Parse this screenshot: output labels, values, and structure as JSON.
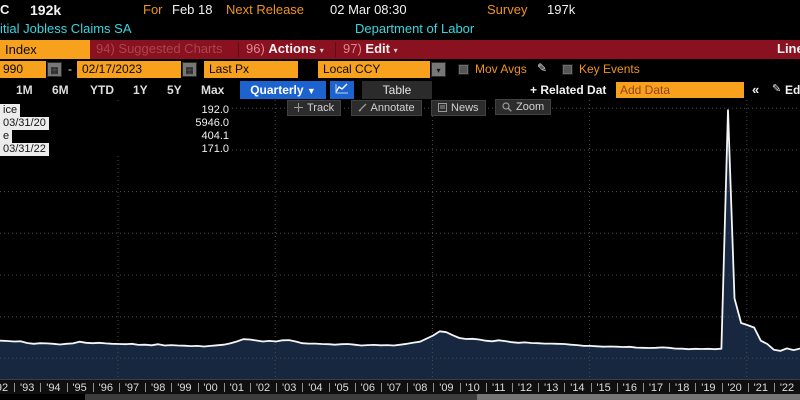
{
  "header": {
    "ticker_fragment": "C",
    "last_value": "192k",
    "for_label": "For",
    "for_date": "Feb 18",
    "next_release_label": "Next Release",
    "next_release_value": "02 Mar 08:30",
    "survey_label": "Survey",
    "survey_value": "197k",
    "security_name": "itial Jobless Claims SA",
    "source": "Department of Labor"
  },
  "menubar": {
    "index_tab": "Index",
    "suggested_charts": "94) Suggested Charts",
    "actions_num": "96)",
    "actions_label": "Actions",
    "edit_num": "97)",
    "edit_label": "Edit",
    "right_fragment": "Line"
  },
  "controls": {
    "date_from": "990",
    "dash": "-",
    "date_to": "02/17/2023",
    "px_type": "Last Px",
    "currency": "Local CCY",
    "mov_avgs": "Mov Avgs",
    "key_events": "Key Events"
  },
  "periodbar": {
    "ranges": [
      "1M",
      "6M",
      "YTD",
      "1Y",
      "5Y",
      "Max"
    ],
    "frequency": "Quarterly",
    "table": "Table",
    "related_label": "+ Related Dat",
    "add_data_placeholder": "Add Data",
    "collapse": "«",
    "edit": "Edit"
  },
  "chart_toolbar": {
    "track": "Track",
    "annotate": "Annotate",
    "news": "News",
    "zoom": "Zoom"
  },
  "legend": {
    "rows": [
      {
        "label": "ice",
        "value": "192.0"
      },
      {
        "label": "03/31/20",
        "value": "5946.0"
      },
      {
        "label": "e",
        "value": "404.1"
      },
      {
        "label": "03/31/22",
        "value": "171.0"
      }
    ]
  },
  "chart_data": {
    "type": "area",
    "title": "Initial Jobless Claims SA",
    "source": "Department of Labor",
    "frequency": "quarterly",
    "x_start": "1992-Q1",
    "x_end": "2023-Q1",
    "ylim": [
      0,
      6300
    ],
    "grid": "dotted",
    "stats": {
      "last": 192.0,
      "high": 5946.0,
      "high_date": "03/31/20",
      "average": 404.1,
      "low": 171.0,
      "low_date": "03/31/22"
    },
    "xticks": [
      "'92",
      "'93",
      "'94",
      "'95",
      "'96",
      "'97",
      "'98",
      "'99",
      "'00",
      "'01",
      "'02",
      "'03",
      "'04",
      "'05",
      "'06",
      "'07",
      "'08",
      "'09",
      "'10",
      "'11",
      "'12",
      "'13",
      "'14",
      "'15",
      "'16",
      "'17",
      "'18",
      "'19",
      "'20",
      "'21",
      "'22"
    ],
    "values": [
      430,
      415,
      408,
      395,
      400,
      360,
      340,
      355,
      350,
      340,
      325,
      340,
      350,
      390,
      365,
      355,
      365,
      350,
      340,
      335,
      330,
      340,
      315,
      320,
      305,
      330,
      300,
      310,
      300,
      295,
      285,
      290,
      275,
      290,
      305,
      320,
      350,
      395,
      450,
      445,
      420,
      395,
      410,
      395,
      425,
      430,
      395,
      355,
      345,
      345,
      335,
      330,
      320,
      330,
      335,
      320,
      300,
      310,
      315,
      305,
      310,
      300,
      320,
      340,
      370,
      390,
      465,
      540,
      640,
      620,
      545,
      480,
      455,
      460,
      445,
      415,
      400,
      425,
      405,
      380,
      365,
      375,
      360,
      355,
      345,
      345,
      340,
      335,
      320,
      310,
      290,
      290,
      280,
      270,
      275,
      270,
      265,
      268,
      250,
      245,
      240,
      245,
      255,
      245,
      225,
      222,
      210,
      220,
      215,
      220,
      212,
      222,
      5946,
      1430,
      840,
      790,
      729,
      415,
      335,
      200,
      171,
      231,
      190,
      225,
      192
    ]
  },
  "colors": {
    "accent_orange": "#f7a11d",
    "amber_text": "#f0941d",
    "cyan_text": "#35d8e2",
    "menubar_red": "#8a1120",
    "button_blue": "#1d63cf",
    "area_fill": "#16273f",
    "line": "#f5f5f5"
  }
}
